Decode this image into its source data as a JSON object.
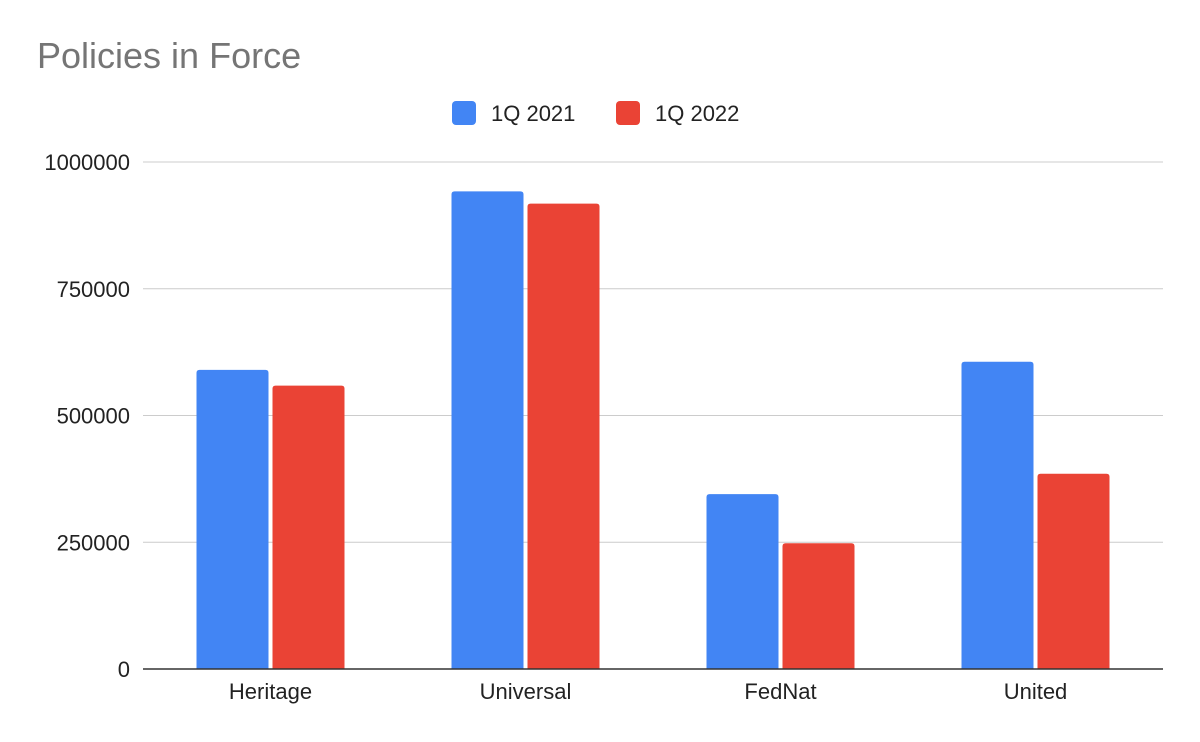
{
  "chart_data": {
    "type": "bar",
    "title": "Policies in Force",
    "xlabel": "",
    "ylabel": "",
    "categories": [
      "Heritage",
      "Universal",
      "FedNat",
      "United"
    ],
    "series": [
      {
        "name": "1Q 2021",
        "color": "#4285f4",
        "values": [
          590000,
          942000,
          345000,
          606000
        ]
      },
      {
        "name": "1Q 2022",
        "color": "#ea4335",
        "values": [
          559000,
          918000,
          248000,
          385000
        ]
      }
    ],
    "ylim": [
      0,
      1000000
    ],
    "yticks": [
      0,
      250000,
      500000,
      750000,
      1000000
    ],
    "ytick_labels": [
      "0",
      "250000",
      "500000",
      "750000",
      "1000000"
    ],
    "grid": true,
    "legend_position": "top-center"
  }
}
